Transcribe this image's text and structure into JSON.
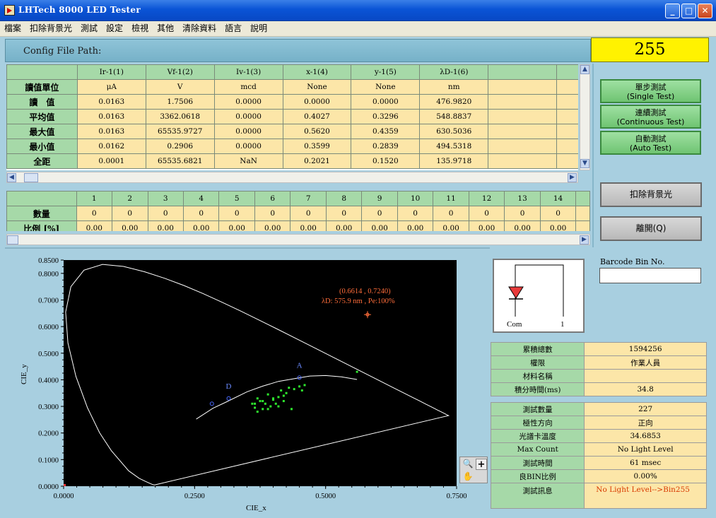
{
  "window": {
    "title": "LHTech 8000 LED Tester"
  },
  "menu": [
    "檔案",
    "扣除背景光",
    "測試",
    "設定",
    "檢視",
    "其他",
    "清除資料",
    "語言",
    "說明"
  ],
  "config": {
    "label": "Config File Path:",
    "value": ""
  },
  "counter": "255",
  "measure_table": {
    "columns": [
      "Ir-1(1)",
      "Vf-1(2)",
      "Iv-1(3)",
      "x-1(4)",
      "y-1(5)",
      "λD-1(6)",
      ""
    ],
    "rows": [
      {
        "label": "讀值單位",
        "cells": [
          "μA",
          "V",
          "mcd",
          "None",
          "None",
          "nm",
          ""
        ]
      },
      {
        "label": "讀　值",
        "cells": [
          "0.0163",
          "1.7506",
          "0.0000",
          "0.0000",
          "0.0000",
          "476.9820",
          ""
        ]
      },
      {
        "label": "平均值",
        "cells": [
          "0.0163",
          "3362.0618",
          "0.0000",
          "0.4027",
          "0.3296",
          "548.8837",
          ""
        ]
      },
      {
        "label": "最大值",
        "cells": [
          "0.0163",
          "65535.9727",
          "0.0000",
          "0.5620",
          "0.4359",
          "630.5036",
          ""
        ]
      },
      {
        "label": "最小值",
        "cells": [
          "0.0162",
          "0.2906",
          "0.0000",
          "0.3599",
          "0.2839",
          "494.5318",
          ""
        ]
      },
      {
        "label": "全距",
        "cells": [
          "0.0001",
          "65535.6821",
          "NaN",
          "0.2021",
          "0.1520",
          "135.9718",
          ""
        ]
      }
    ]
  },
  "bin_table": {
    "columns": [
      "1",
      "2",
      "3",
      "4",
      "5",
      "6",
      "7",
      "8",
      "9",
      "10",
      "11",
      "12",
      "13",
      "14"
    ],
    "rows": [
      {
        "label": "數量",
        "cells": [
          "0",
          "0",
          "0",
          "0",
          "0",
          "0",
          "0",
          "0",
          "0",
          "0",
          "0",
          "0",
          "0",
          "0"
        ]
      },
      {
        "label": "比例 [%]",
        "cells": [
          "0.00",
          "0.00",
          "0.00",
          "0.00",
          "0.00",
          "0.00",
          "0.00",
          "0.00",
          "0.00",
          "0.00",
          "0.00",
          "0.00",
          "0.00",
          "0.00"
        ]
      }
    ]
  },
  "buttons": {
    "single": {
      "zh": "單步測試",
      "en": "(Single Test)"
    },
    "continuous": {
      "zh": "連續測試",
      "en": "(Continuous Test)"
    },
    "auto": {
      "zh": "自動測試",
      "en": "(Auto Test)"
    },
    "background": "扣除背景光",
    "exit": "離開(Q)"
  },
  "led_icon": {
    "left_label": "Com",
    "right_label": "1"
  },
  "barcode": {
    "label": "Barcode Bin No.",
    "value": ""
  },
  "stats1": [
    {
      "label": "累積總數",
      "value": "1594256"
    },
    {
      "label": "權限",
      "value": "作業人員"
    },
    {
      "label": "材料名稱",
      "value": ""
    },
    {
      "label": "積分時間(ms)",
      "value": "34.8"
    }
  ],
  "stats2": [
    {
      "label": "測試數量",
      "value": "227"
    },
    {
      "label": "極性方向",
      "value": "正向"
    },
    {
      "label": "光譜卡溫度",
      "value": "34.6853"
    },
    {
      "label": "Max Count",
      "value": "No Light Level"
    },
    {
      "label": "測試時間",
      "value": "61  msec"
    },
    {
      "label": "良BIN比例",
      "value": "0.00%"
    },
    {
      "label": "測試訊息",
      "value": "No Light Level-->Bin255"
    }
  ],
  "colors": {
    "accent_green": "#a6d9a8",
    "cell_yellow": "#fce6a8",
    "counter_yellow": "#fff200",
    "message_red": "#d83a00",
    "annot": "#ff6d3a"
  },
  "chart_data": {
    "type": "scatter",
    "title": "",
    "xlabel": "CIE_x",
    "ylabel": "CIE_y",
    "xlim": [
      0.0,
      0.75
    ],
    "ylim": [
      0.0,
      0.85
    ],
    "xticks": [
      "0.0000",
      "0.2500",
      "0.5000",
      "0.7500"
    ],
    "yticks": [
      "0.0000",
      "0.1000",
      "0.2000",
      "0.3000",
      "0.4000",
      "0.5000",
      "0.6000",
      "0.7000",
      "0.8000",
      "0.8500"
    ],
    "annotation": {
      "line1": "(0.6614 , 0.7240)",
      "line2": "λD: 575.9 nm ,  Pe:100%",
      "x": 0.58,
      "y": 0.645
    },
    "markers": [
      {
        "label": "A",
        "x": 0.45,
        "y": 0.408
      },
      {
        "label": "D",
        "x": 0.315,
        "y": 0.33
      },
      {
        "label": "",
        "x": 0.283,
        "y": 0.31
      }
    ],
    "points": [
      [
        0.36,
        0.31
      ],
      [
        0.365,
        0.295
      ],
      [
        0.37,
        0.33
      ],
      [
        0.375,
        0.32
      ],
      [
        0.38,
        0.29
      ],
      [
        0.385,
        0.31
      ],
      [
        0.39,
        0.345
      ],
      [
        0.395,
        0.3
      ],
      [
        0.4,
        0.325
      ],
      [
        0.405,
        0.31
      ],
      [
        0.41,
        0.335
      ],
      [
        0.415,
        0.36
      ],
      [
        0.42,
        0.32
      ],
      [
        0.425,
        0.35
      ],
      [
        0.43,
        0.37
      ],
      [
        0.44,
        0.365
      ],
      [
        0.45,
        0.375
      ],
      [
        0.46,
        0.38
      ],
      [
        0.38,
        0.32
      ],
      [
        0.39,
        0.29
      ],
      [
        0.4,
        0.33
      ],
      [
        0.41,
        0.3
      ],
      [
        0.42,
        0.34
      ],
      [
        0.435,
        0.29
      ],
      [
        0.37,
        0.28
      ],
      [
        0.365,
        0.31
      ],
      [
        0.455,
        0.36
      ],
      [
        0.56,
        0.43
      ]
    ]
  }
}
